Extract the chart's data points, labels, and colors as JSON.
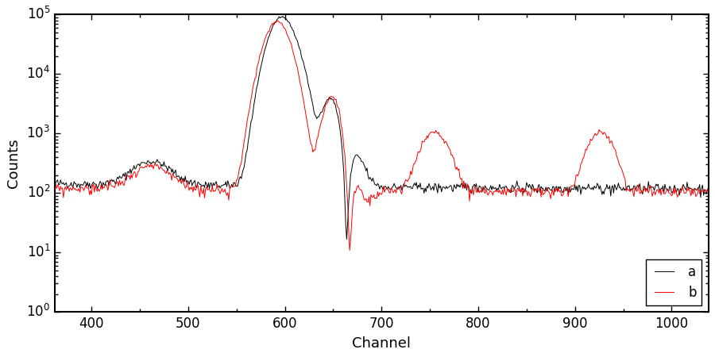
{
  "xlabel": "Channel",
  "ylabel": "Counts",
  "xlim": [
    362,
    1038
  ],
  "ylim": [
    1,
    100000.0
  ],
  "line_a_color": "#000000",
  "line_b_color": "#ff0000",
  "line_a_label": "a",
  "line_b_label": "b",
  "legend_loc": "lower right",
  "background_color": "#ffffff",
  "figsize": [
    9.0,
    4.5
  ],
  "dpi": 100,
  "xticks": [
    400,
    500,
    600,
    700,
    800,
    900,
    1000
  ]
}
